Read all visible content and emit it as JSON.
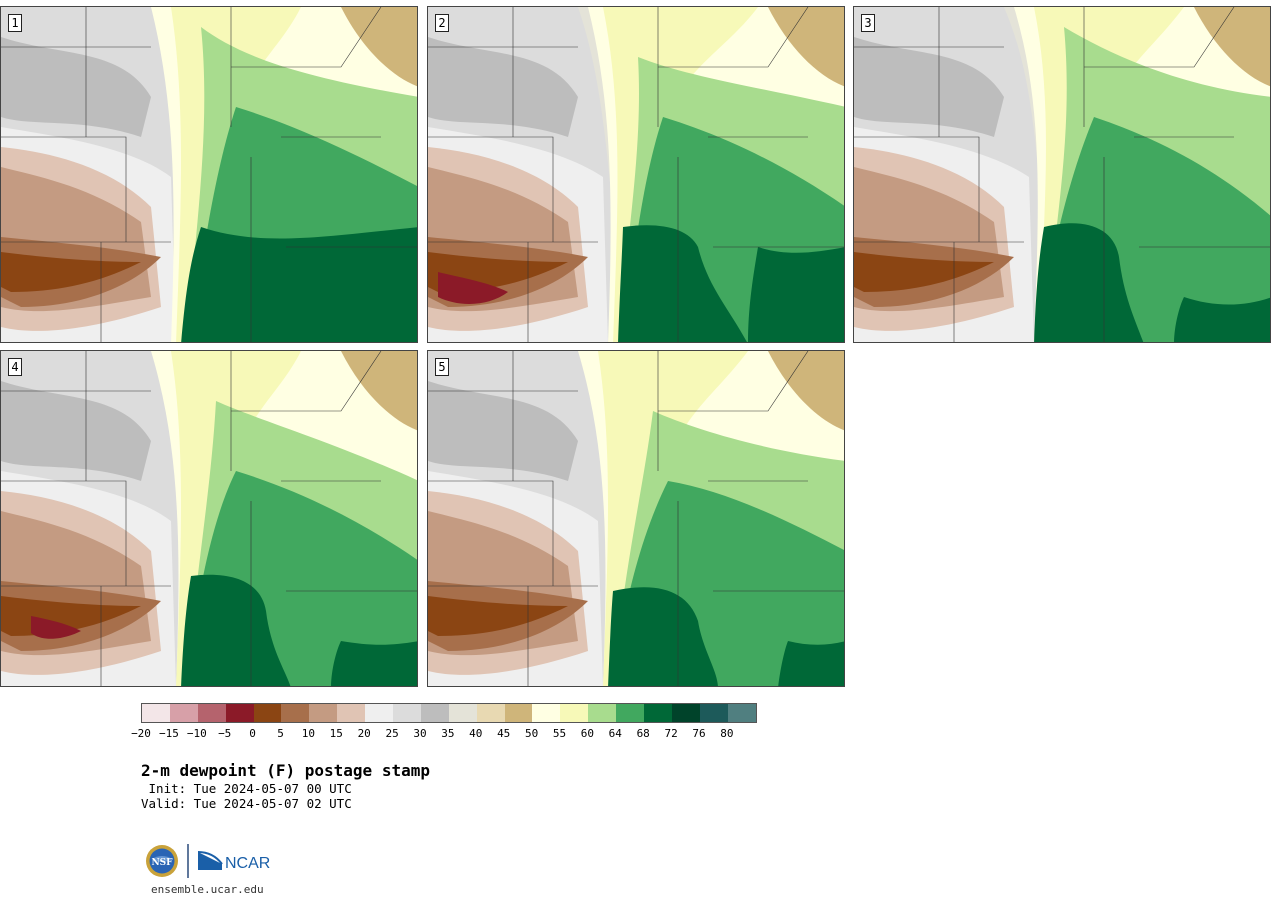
{
  "panels": [
    {
      "label": "1"
    },
    {
      "label": "2"
    },
    {
      "label": "3"
    },
    {
      "label": "4"
    },
    {
      "label": "5"
    }
  ],
  "colorbar": {
    "colors": [
      "#f3e6e8",
      "#d7a0a8",
      "#b5636d",
      "#8b1a28",
      "#8b4513",
      "#a76f4b",
      "#c49b82",
      "#e0c4b4",
      "#efefef",
      "#dcdcdc",
      "#bdbdbd",
      "#e4e3d8",
      "#e8d9b2",
      "#cfb57a",
      "#ffffe3",
      "#f7f9b8",
      "#a8dc8e",
      "#41a85f",
      "#006837",
      "#00432a",
      "#1d5a5a",
      "#507f80"
    ],
    "ticks": [
      "−20",
      "−15",
      "−10",
      "−5",
      "0",
      "5",
      "10",
      "15",
      "20",
      "25",
      "30",
      "35",
      "40",
      "45",
      "50",
      "55",
      "60",
      "64",
      "68",
      "72",
      "76",
      "80"
    ]
  },
  "title": "2-m dewpoint (F) postage stamp",
  "init": " Init: Tue 2024-05-07 00 UTC",
  "valid": "Valid: Tue 2024-05-07 02 UTC",
  "logos": {
    "nsf_text": "NSF",
    "ncar_text": "NCAR",
    "icon": "nsf-ncar-logo"
  },
  "site": "ensemble.ucar.edu"
}
